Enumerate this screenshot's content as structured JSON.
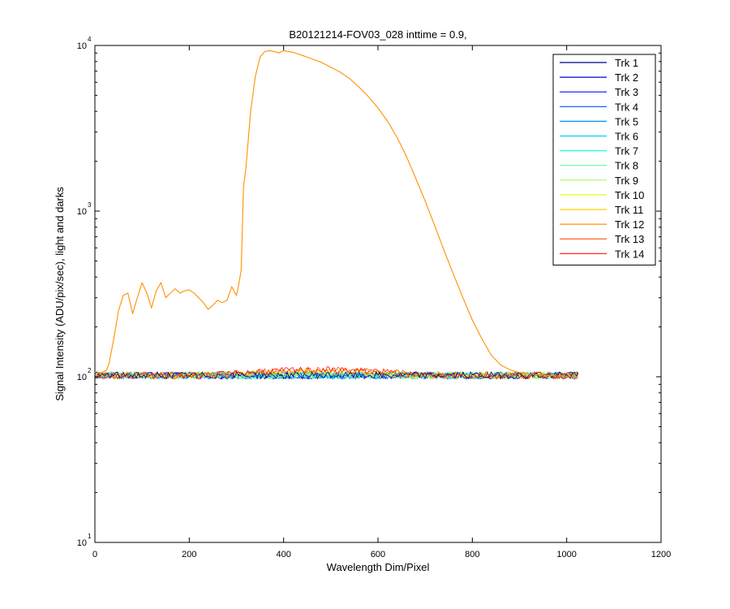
{
  "chart_data": {
    "type": "line",
    "title": "B20121214-FOV03_028 inttime = 0.9,",
    "xlabel": "Wavelength Dim/Pixel",
    "ylabel": "Signal Intensity (ADU/pix/sec), light and darks",
    "xlim": [
      0,
      1200
    ],
    "ylim": [
      10,
      10000
    ],
    "yscale": "log",
    "grid": false,
    "legend_position": "top-right",
    "x_ticks": [
      "0",
      "200",
      "400",
      "600",
      "800",
      "1000",
      "1200"
    ],
    "y_ticks": [
      {
        "base": "10",
        "exp": "1"
      },
      {
        "base": "10",
        "exp": "2"
      },
      {
        "base": "10",
        "exp": "3"
      },
      {
        "base": "10",
        "exp": "4"
      }
    ],
    "bright_series": {
      "name": "Trk 12",
      "x": [
        0,
        15,
        25,
        30,
        40,
        50,
        60,
        70,
        80,
        90,
        100,
        110,
        120,
        130,
        140,
        150,
        160,
        170,
        180,
        190,
        200,
        210,
        220,
        230,
        240,
        250,
        260,
        270,
        280,
        290,
        300,
        305,
        310,
        315,
        320,
        330,
        340,
        350,
        360,
        370,
        380,
        390,
        400,
        410,
        420,
        440,
        460,
        480,
        500,
        520,
        540,
        560,
        580,
        600,
        620,
        640,
        660,
        680,
        700,
        720,
        740,
        760,
        780,
        800,
        820,
        840,
        860,
        880,
        900,
        920,
        940,
        960,
        980,
        1000,
        1010,
        1020
      ],
      "y": [
        105,
        106,
        110,
        120,
        170,
        250,
        310,
        320,
        240,
        300,
        370,
        320,
        260,
        330,
        370,
        300,
        320,
        340,
        320,
        330,
        335,
        320,
        300,
        280,
        255,
        270,
        290,
        280,
        290,
        350,
        310,
        360,
        440,
        1400,
        1800,
        4000,
        6500,
        8500,
        9200,
        9300,
        9200,
        9000,
        9300,
        9200,
        9100,
        8700,
        8300,
        7900,
        7400,
        6900,
        6300,
        5600,
        4900,
        4200,
        3500,
        2800,
        2150,
        1580,
        1150,
        820,
        580,
        415,
        300,
        220,
        170,
        135,
        118,
        110,
        106,
        104,
        103,
        102,
        101,
        100,
        100,
        100
      ]
    },
    "baseline": {
      "x": [
        0,
        1025
      ],
      "y_low": 97,
      "y_high": 107,
      "hump_x": [
        250,
        700
      ],
      "hump_peak": 115
    },
    "series": [
      {
        "name": "Trk 1",
        "color": "#00008F"
      },
      {
        "name": "Trk 2",
        "color": "#0000CF"
      },
      {
        "name": "Trk 3",
        "color": "#0010FF"
      },
      {
        "name": "Trk 4",
        "color": "#0050FF"
      },
      {
        "name": "Trk 5",
        "color": "#0090FF"
      },
      {
        "name": "Trk 6",
        "color": "#00D0FF"
      },
      {
        "name": "Trk 7",
        "color": "#20FFDF"
      },
      {
        "name": "Trk 8",
        "color": "#60FF9F"
      },
      {
        "name": "Trk 9",
        "color": "#9FFF60"
      },
      {
        "name": "Trk 10",
        "color": "#DFFF20"
      },
      {
        "name": "Trk 11",
        "color": "#FFD000"
      },
      {
        "name": "Trk 12",
        "color": "#FF9000"
      },
      {
        "name": "Trk 13",
        "color": "#FF5000"
      },
      {
        "name": "Trk 14",
        "color": "#FF1000"
      }
    ]
  }
}
